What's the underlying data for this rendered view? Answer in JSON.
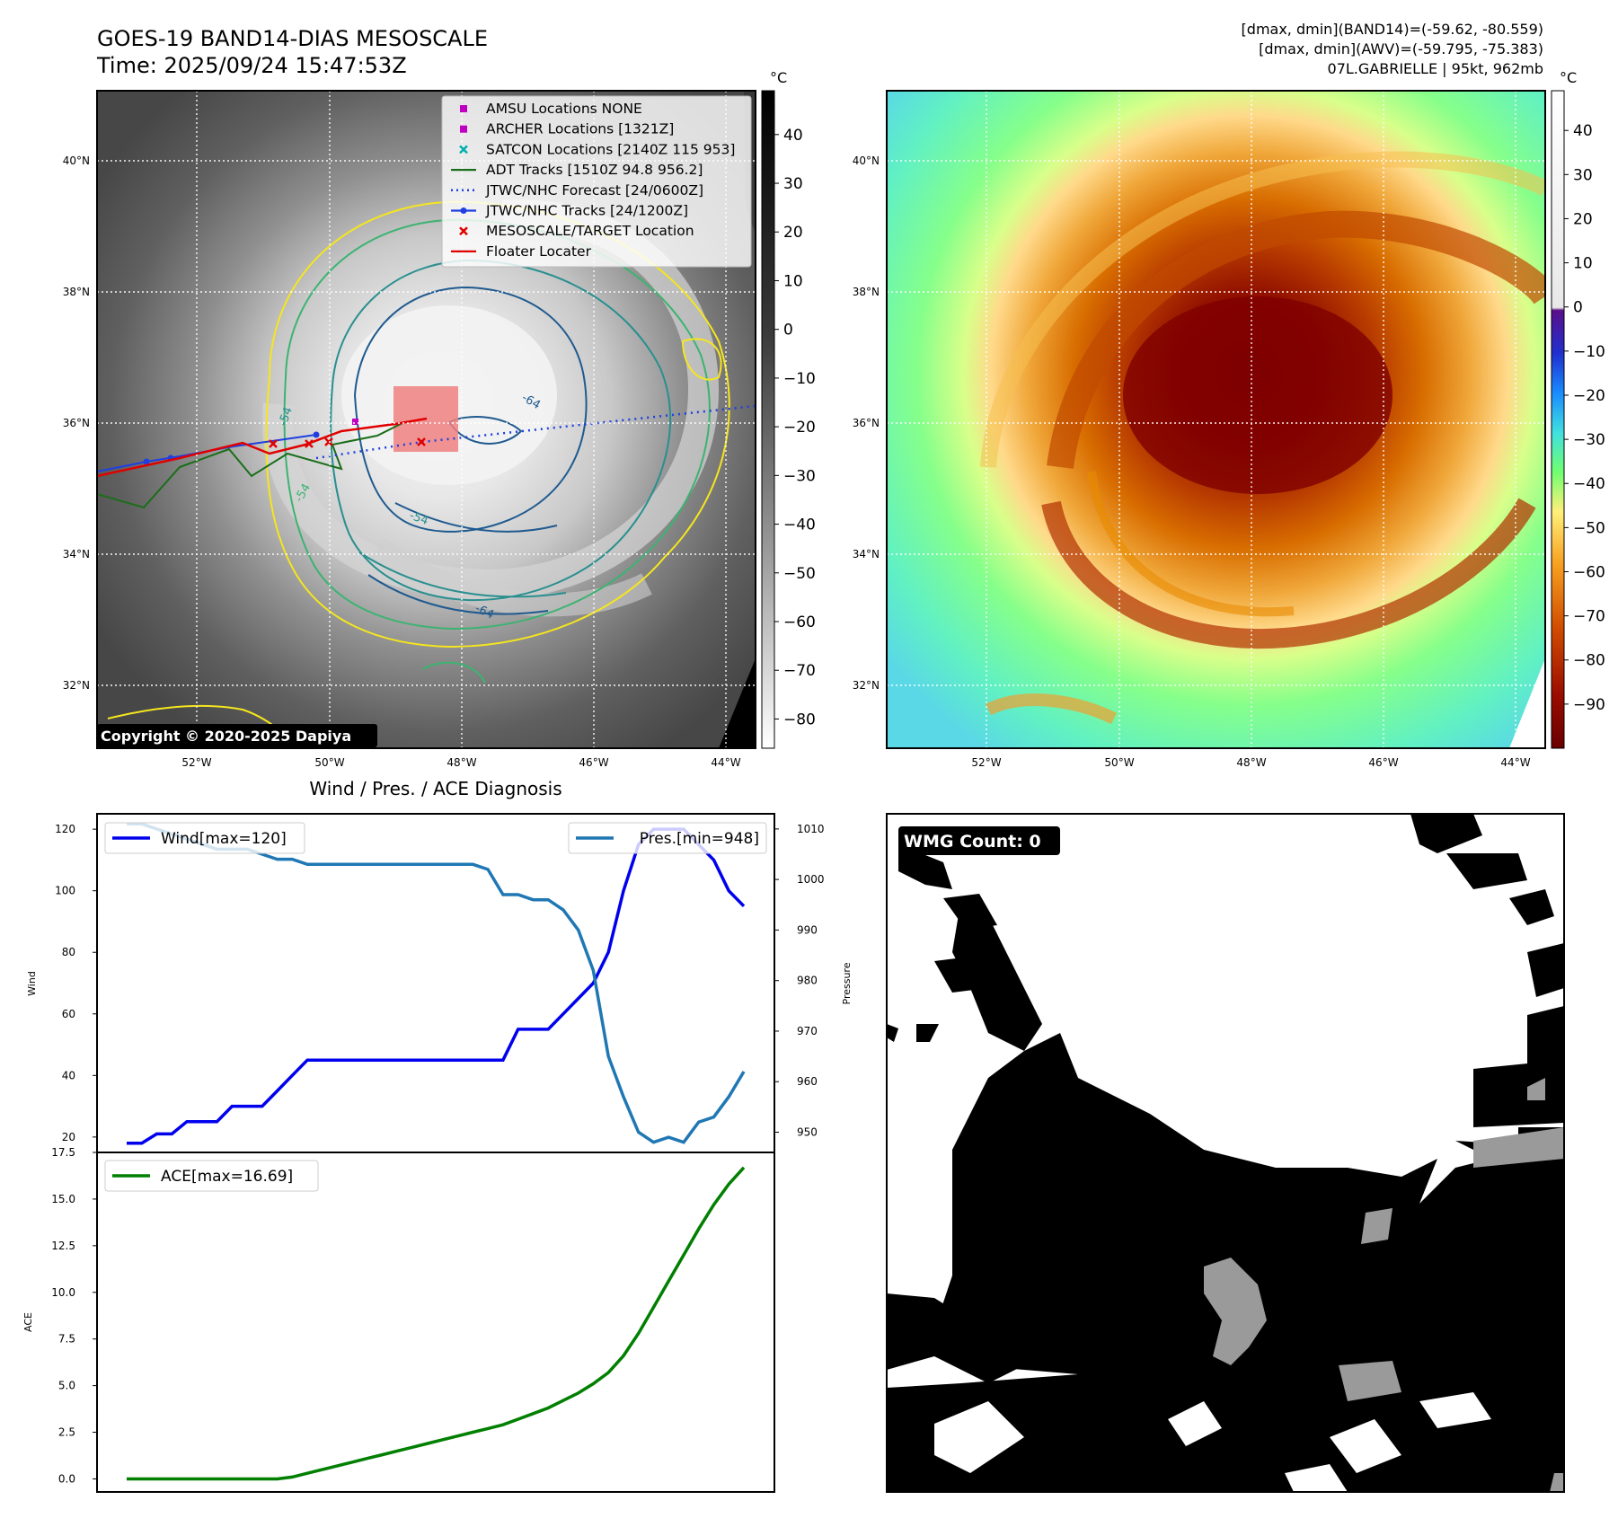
{
  "header": {
    "title_line1": "GOES-19 BAND14-DIAS MESOSCALE",
    "title_line2": "Time: 2025/09/24 15:47:53Z",
    "info_line1": "[dmax, dmin](BAND14)=(-59.62, -80.559)",
    "info_line2": "[dmax, dmin](AWV)=(-59.795, -75.383)",
    "info_line3": "07L.GABRIELLE | 95kt, 962mb"
  },
  "map": {
    "lat_labels": [
      "40°N",
      "38°N",
      "36°N",
      "34°N",
      "32°N"
    ],
    "lon_labels": [
      "52°W",
      "50°W",
      "48°W",
      "46°W",
      "44°W"
    ],
    "contour_labels": [
      "-54",
      "-64",
      "-54",
      "-64",
      "-54"
    ],
    "copyright": "Copyright © 2020-2025 Dapiya",
    "legend": [
      {
        "label": "AMSU Locations NONE",
        "color": "#c000c0",
        "kind": "square"
      },
      {
        "label": "ARCHER Locations [1321Z]",
        "color": "#c000c0",
        "kind": "square"
      },
      {
        "label": "SATCON Locations [2140Z 115 953]",
        "color": "#00b0b0",
        "kind": "x"
      },
      {
        "label": "ADT Tracks [1510Z 94.8 956.2]",
        "color": "#1a6e1a",
        "kind": "line"
      },
      {
        "label": "JTWC/NHC Forecast [24/0600Z]",
        "color": "#1f3fe0",
        "kind": "dotted"
      },
      {
        "label": "JTWC/NHC Tracks [24/1200Z]",
        "color": "#1f3fe0",
        "kind": "line-dot"
      },
      {
        "label": "MESOSCALE/TARGET Location",
        "color": "#e00000",
        "kind": "x"
      },
      {
        "label": "Floater Locater",
        "color": "#e00000",
        "kind": "line"
      }
    ]
  },
  "colorbar_gray": {
    "unit": "°C",
    "ticks": [
      "40",
      "30",
      "20",
      "10",
      "0",
      "−10",
      "−20",
      "−30",
      "−40",
      "−50",
      "−60",
      "−70",
      "−80"
    ]
  },
  "colorbar_color": {
    "unit": "°C",
    "ticks": [
      "40",
      "30",
      "20",
      "10",
      "0",
      "−10",
      "−20",
      "−30",
      "−40",
      "−50",
      "−60",
      "−70",
      "−80",
      "−90"
    ]
  },
  "diag": {
    "title": "Wind / Pres. / ACE Diagnosis",
    "wind_ylabel": "Wind",
    "pres_ylabel": "Pressure",
    "ace_ylabel": "ACE",
    "wind_legend": "Wind[max=120]",
    "pres_legend": "Pres.[min=948]",
    "ace_legend": "ACE[max=16.69]"
  },
  "wmg": {
    "label": "WMG Count: 0"
  },
  "colors": {
    "wind": "#0000ee",
    "pressure": "#1f77b4",
    "ace": "#007f00",
    "track_red": "#e00000",
    "track_blue": "#1f3fe0",
    "track_green": "#1a6e1a",
    "contour_yellow": "#f5e61e",
    "contour_green": "#3cb371",
    "contour_teal": "#2a8f8f",
    "contour_blue": "#1f5a8f"
  },
  "chart_data": [
    {
      "type": "line",
      "title": "Wind / Pres. / ACE Diagnosis",
      "ylabel": "Wind",
      "ylim": [
        15,
        125
      ],
      "series": [
        {
          "name": "Wind[max=120]",
          "values": [
            18,
            18,
            21,
            21,
            25,
            25,
            25,
            30,
            30,
            30,
            35,
            40,
            45,
            45,
            45,
            45,
            45,
            45,
            45,
            45,
            45,
            45,
            45,
            45,
            45,
            45,
            55,
            55,
            55,
            60,
            65,
            70,
            80,
            100,
            115,
            120,
            120,
            120,
            115,
            110,
            100,
            95
          ]
        }
      ],
      "ticks": [
        "20",
        "40",
        "60",
        "80",
        "100",
        "120"
      ]
    },
    {
      "type": "line",
      "ylabel": "Pressure",
      "ylim": [
        946,
        1013
      ],
      "series": [
        {
          "name": "Pres.[min=948]",
          "values": [
            1011,
            1011,
            1010,
            1009,
            1008,
            1007,
            1006,
            1006,
            1006,
            1005,
            1004,
            1004,
            1003,
            1003,
            1003,
            1003,
            1003,
            1003,
            1003,
            1003,
            1003,
            1003,
            1003,
            1003,
            1002,
            997,
            997,
            996,
            996,
            994,
            990,
            982,
            965,
            957,
            950,
            948,
            949,
            948,
            952,
            953,
            957,
            962
          ]
        }
      ],
      "ticks": [
        "950",
        "960",
        "970",
        "980",
        "990",
        "1000",
        "1010"
      ]
    },
    {
      "type": "line",
      "ylabel": "ACE",
      "ylim": [
        -0.7,
        17.5
      ],
      "series": [
        {
          "name": "ACE[max=16.69]",
          "values": [
            0,
            0,
            0,
            0,
            0,
            0,
            0,
            0,
            0,
            0,
            0,
            0.1,
            0.3,
            0.5,
            0.7,
            0.9,
            1.1,
            1.3,
            1.5,
            1.7,
            1.9,
            2.1,
            2.3,
            2.5,
            2.7,
            2.9,
            3.2,
            3.5,
            3.8,
            4.2,
            4.6,
            5.1,
            5.7,
            6.6,
            7.8,
            9.2,
            10.6,
            12.0,
            13.4,
            14.7,
            15.8,
            16.69
          ]
        }
      ],
      "ticks": [
        "0.0",
        "2.5",
        "5.0",
        "7.5",
        "10.0",
        "12.5",
        "15.0",
        "17.5"
      ]
    }
  ]
}
